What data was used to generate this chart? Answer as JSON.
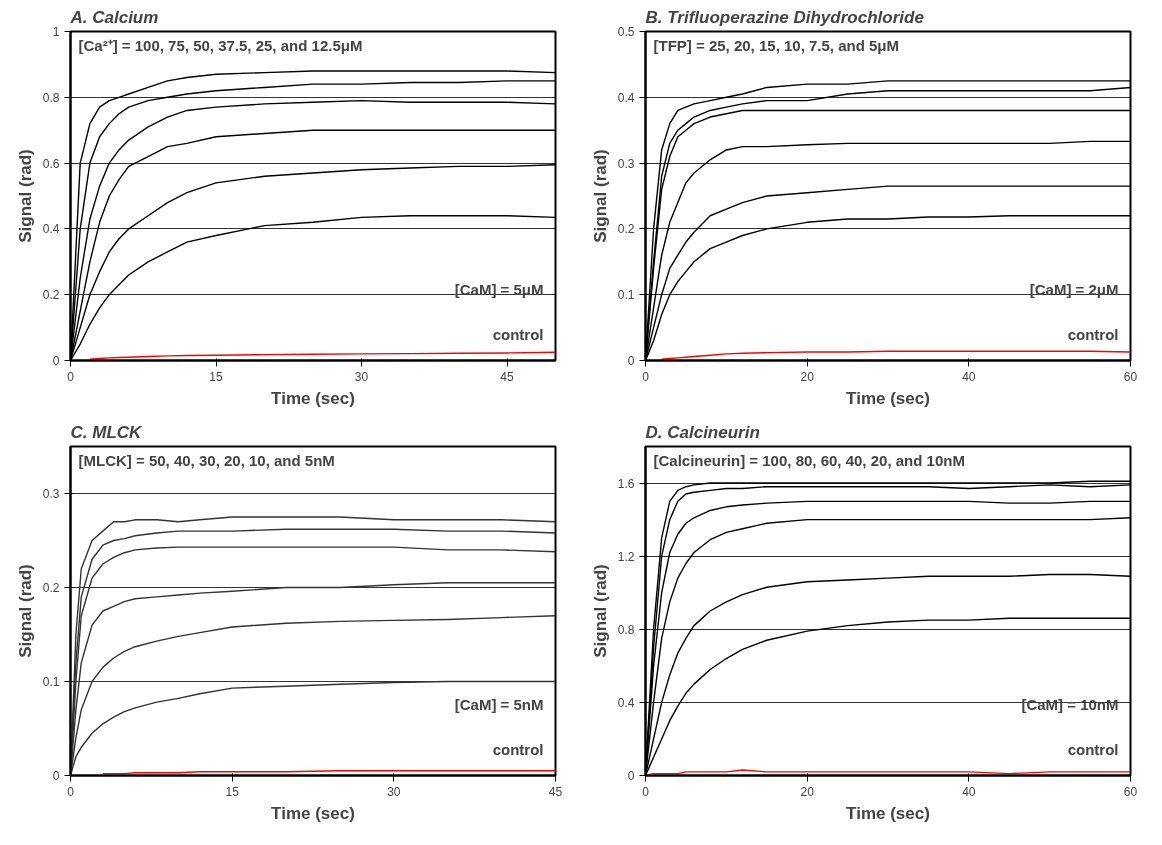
{
  "chart_data": [
    {
      "type": "line",
      "title": "A. Calcium",
      "xlabel": "Time (sec)",
      "ylabel": "Signal (rad)",
      "annotations": [
        "[Ca²⁺] = 100, 75, 50, 37.5, 25, and 12.5μM",
        "[CaM] = 5μM",
        "control"
      ],
      "xlim": [
        0,
        50
      ],
      "ylim": [
        0,
        1
      ],
      "xticks": [
        0,
        15,
        30,
        45
      ],
      "yticks": [
        0,
        0.2,
        0.4,
        0.6,
        0.8,
        1
      ],
      "grid": "y",
      "x": [
        0,
        1,
        2,
        3,
        4,
        5,
        6,
        8,
        10,
        12,
        15,
        20,
        25,
        30,
        35,
        40,
        45,
        50
      ],
      "series": [
        {
          "color": "#000000",
          "values": [
            0,
            0.6,
            0.72,
            0.77,
            0.79,
            0.8,
            0.81,
            0.83,
            0.85,
            0.86,
            0.87,
            0.875,
            0.88,
            0.88,
            0.88,
            0.88,
            0.88,
            0.875
          ]
        },
        {
          "color": "#000000",
          "values": [
            0,
            0.4,
            0.6,
            0.68,
            0.72,
            0.75,
            0.77,
            0.79,
            0.8,
            0.81,
            0.82,
            0.83,
            0.84,
            0.84,
            0.845,
            0.845,
            0.85,
            0.85
          ]
        },
        {
          "color": "#000000",
          "values": [
            0,
            0.25,
            0.43,
            0.53,
            0.6,
            0.64,
            0.67,
            0.71,
            0.74,
            0.76,
            0.77,
            0.78,
            0.785,
            0.79,
            0.785,
            0.785,
            0.785,
            0.78
          ]
        },
        {
          "color": "#000000",
          "values": [
            0,
            0.15,
            0.3,
            0.42,
            0.5,
            0.55,
            0.59,
            0.62,
            0.65,
            0.66,
            0.68,
            0.69,
            0.7,
            0.7,
            0.7,
            0.7,
            0.7,
            0.7
          ]
        },
        {
          "color": "#000000",
          "values": [
            0,
            0.1,
            0.2,
            0.27,
            0.33,
            0.37,
            0.4,
            0.44,
            0.48,
            0.51,
            0.54,
            0.56,
            0.57,
            0.58,
            0.585,
            0.59,
            0.59,
            0.595
          ]
        },
        {
          "color": "#000000",
          "values": [
            0,
            0.05,
            0.11,
            0.16,
            0.2,
            0.23,
            0.26,
            0.3,
            0.33,
            0.36,
            0.38,
            0.41,
            0.42,
            0.435,
            0.44,
            0.44,
            0.44,
            0.435
          ]
        },
        {
          "color": "#ff0000",
          "values": [
            null,
            null,
            0.004,
            0.006,
            0.008,
            0.009,
            0.01,
            0.012,
            0.014,
            0.015,
            0.016,
            0.018,
            0.019,
            0.02,
            0.021,
            0.022,
            0.023,
            0.025
          ]
        }
      ]
    },
    {
      "type": "line",
      "title": "B. Trifluoperazine Dihydrochloride",
      "xlabel": "Time (sec)",
      "ylabel": "Signal (rad)",
      "annotations": [
        "[TFP] = 25, 20, 15, 10, 7.5, and 5μM",
        "[CaM] = 2μM",
        "control"
      ],
      "xlim": [
        0,
        60
      ],
      "ylim": [
        0,
        0.5
      ],
      "xticks": [
        0,
        20,
        40,
        60
      ],
      "yticks": [
        0,
        0.1,
        0.2,
        0.3,
        0.4,
        0.5
      ],
      "grid": "y",
      "x": [
        0,
        1,
        2,
        3,
        4,
        5,
        6,
        8,
        10,
        12,
        15,
        20,
        25,
        30,
        35,
        40,
        45,
        50,
        55,
        60
      ],
      "series": [
        {
          "color": "#000000",
          "values": [
            0,
            0.2,
            0.32,
            0.36,
            0.38,
            0.385,
            0.39,
            0.395,
            0.4,
            0.405,
            0.415,
            0.42,
            0.42,
            0.425,
            0.425,
            0.425,
            0.425,
            0.425,
            0.425,
            0.425
          ]
        },
        {
          "color": "#000000",
          "values": [
            0,
            0.15,
            0.28,
            0.33,
            0.35,
            0.36,
            0.37,
            0.38,
            0.385,
            0.39,
            0.395,
            0.395,
            0.405,
            0.41,
            0.41,
            0.41,
            0.41,
            0.41,
            0.41,
            0.415
          ]
        },
        {
          "color": "#000000",
          "values": [
            0,
            0.14,
            0.26,
            0.31,
            0.34,
            0.35,
            0.36,
            0.37,
            0.375,
            0.38,
            0.38,
            0.38,
            0.38,
            0.38,
            0.38,
            0.38,
            0.38,
            0.38,
            0.38,
            0.38
          ]
        },
        {
          "color": "#000000",
          "values": [
            0,
            0.08,
            0.16,
            0.21,
            0.24,
            0.27,
            0.285,
            0.305,
            0.32,
            0.325,
            0.325,
            0.328,
            0.33,
            0.33,
            0.33,
            0.33,
            0.33,
            0.33,
            0.333,
            0.333
          ]
        },
        {
          "color": "#000000",
          "values": [
            0,
            0.05,
            0.1,
            0.14,
            0.16,
            0.18,
            0.195,
            0.22,
            0.23,
            0.24,
            0.25,
            0.255,
            0.26,
            0.265,
            0.265,
            0.265,
            0.265,
            0.265,
            0.265,
            0.265
          ]
        },
        {
          "color": "#000000",
          "values": [
            0,
            0.03,
            0.07,
            0.1,
            0.12,
            0.135,
            0.15,
            0.17,
            0.18,
            0.19,
            0.2,
            0.21,
            0.215,
            0.215,
            0.218,
            0.218,
            0.22,
            0.22,
            0.22,
            0.22
          ]
        },
        {
          "color": "#ff0000",
          "values": [
            null,
            null,
            0.002,
            0.003,
            0.004,
            0.005,
            0.006,
            0.008,
            0.01,
            0.011,
            0.012,
            0.013,
            0.013,
            0.014,
            0.014,
            0.014,
            0.014,
            0.014,
            0.014,
            0.013
          ]
        }
      ]
    },
    {
      "type": "line",
      "title": "C. MLCK",
      "xlabel": "Time (sec)",
      "ylabel": "Signal (rad)",
      "annotations": [
        "[MLCK] = 50, 40, 30, 20, 10, and 5nM",
        "[CaM] = 5nM",
        "control"
      ],
      "xlim": [
        0,
        45
      ],
      "ylim": [
        0,
        0.35
      ],
      "xticks": [
        0,
        15,
        30,
        45
      ],
      "yticks": [
        0,
        0.1,
        0.2,
        0.3
      ],
      "grid": "y",
      "x": [
        0,
        0.5,
        1,
        2,
        3,
        4,
        5,
        6,
        8,
        10,
        12,
        15,
        20,
        25,
        30,
        35,
        40,
        45
      ],
      "series": [
        {
          "color": "#333333",
          "values": [
            0,
            0.15,
            0.22,
            0.25,
            0.26,
            0.27,
            0.27,
            0.272,
            0.272,
            0.27,
            0.272,
            0.275,
            0.275,
            0.275,
            0.272,
            0.272,
            0.272,
            0.27
          ]
        },
        {
          "color": "#333333",
          "values": [
            0,
            0.12,
            0.19,
            0.23,
            0.245,
            0.25,
            0.252,
            0.255,
            0.258,
            0.26,
            0.26,
            0.26,
            0.262,
            0.262,
            0.262,
            0.26,
            0.26,
            0.258
          ]
        },
        {
          "color": "#333333",
          "values": [
            0,
            0.1,
            0.17,
            0.21,
            0.225,
            0.232,
            0.237,
            0.24,
            0.242,
            0.243,
            0.243,
            0.243,
            0.243,
            0.243,
            0.243,
            0.24,
            0.24,
            0.238
          ]
        },
        {
          "color": "#333333",
          "values": [
            0,
            0.07,
            0.12,
            0.16,
            0.175,
            0.18,
            0.185,
            0.188,
            0.19,
            0.192,
            0.194,
            0.196,
            0.2,
            0.2,
            0.203,
            0.205,
            0.205,
            0.205
          ]
        },
        {
          "color": "#333333",
          "values": [
            0,
            0.04,
            0.07,
            0.1,
            0.115,
            0.125,
            0.132,
            0.137,
            0.143,
            0.148,
            0.152,
            0.158,
            0.162,
            0.164,
            0.165,
            0.166,
            0.168,
            0.17
          ]
        },
        {
          "color": "#333333",
          "values": [
            0,
            0.02,
            0.03,
            0.045,
            0.055,
            0.062,
            0.068,
            0.072,
            0.078,
            0.082,
            0.087,
            0.093,
            0.095,
            0.097,
            0.099,
            0.1,
            0.1,
            0.1
          ]
        },
        {
          "color": "#ff0000",
          "values": [
            null,
            null,
            null,
            null,
            0.002,
            0.002,
            0.002,
            0.003,
            0.003,
            0.003,
            0.004,
            0.004,
            0.004,
            0.005,
            0.005,
            0.005,
            0.005,
            0.005
          ]
        }
      ]
    },
    {
      "type": "line",
      "title": "D. Calcineurin",
      "xlabel": "Time (sec)",
      "ylabel": "Signal (rad)",
      "annotations": [
        "[Calcineurin] = 100, 80, 60, 40, 20, and 10nM",
        "[CaM] = 10nM",
        "control"
      ],
      "xlim": [
        0,
        60
      ],
      "ylim": [
        0,
        1.8
      ],
      "xticks": [
        0,
        20,
        40,
        60
      ],
      "yticks": [
        0,
        0.4,
        0.8,
        1.2,
        1.6
      ],
      "grid": "y",
      "x": [
        0,
        1,
        2,
        3,
        4,
        5,
        6,
        8,
        10,
        12,
        15,
        20,
        25,
        30,
        35,
        40,
        45,
        50,
        55,
        60
      ],
      "series": [
        {
          "color": "#000000",
          "values": [
            0,
            0.8,
            1.3,
            1.5,
            1.56,
            1.58,
            1.59,
            1.6,
            1.6,
            1.6,
            1.6,
            1.6,
            1.6,
            1.6,
            1.6,
            1.6,
            1.6,
            1.6,
            1.61,
            1.61
          ]
        },
        {
          "color": "#000000",
          "values": [
            0,
            0.7,
            1.2,
            1.4,
            1.5,
            1.54,
            1.55,
            1.56,
            1.57,
            1.57,
            1.58,
            1.58,
            1.58,
            1.58,
            1.58,
            1.57,
            1.58,
            1.59,
            1.58,
            1.59
          ]
        },
        {
          "color": "#000000",
          "values": [
            0,
            0.6,
            1.0,
            1.22,
            1.32,
            1.38,
            1.41,
            1.45,
            1.47,
            1.48,
            1.49,
            1.5,
            1.5,
            1.5,
            1.5,
            1.5,
            1.49,
            1.49,
            1.5,
            1.5
          ]
        },
        {
          "color": "#000000",
          "values": [
            0,
            0.4,
            0.75,
            0.95,
            1.08,
            1.16,
            1.22,
            1.29,
            1.33,
            1.35,
            1.38,
            1.4,
            1.4,
            1.4,
            1.4,
            1.4,
            1.4,
            1.4,
            1.4,
            1.41
          ]
        },
        {
          "color": "#000000",
          "values": [
            0,
            0.2,
            0.4,
            0.55,
            0.67,
            0.75,
            0.82,
            0.9,
            0.95,
            0.99,
            1.03,
            1.06,
            1.07,
            1.08,
            1.09,
            1.09,
            1.09,
            1.1,
            1.1,
            1.09
          ]
        },
        {
          "color": "#000000",
          "values": [
            0,
            0.1,
            0.2,
            0.3,
            0.38,
            0.45,
            0.5,
            0.58,
            0.64,
            0.69,
            0.74,
            0.79,
            0.82,
            0.84,
            0.85,
            0.85,
            0.86,
            0.86,
            0.86,
            0.86
          ]
        },
        {
          "color": "#ff0000",
          "values": [
            0,
            0.01,
            0.01,
            0.01,
            0.01,
            0.02,
            0.02,
            0.02,
            0.02,
            0.03,
            0.02,
            0.02,
            0.02,
            0.02,
            0.02,
            0.02,
            0.01,
            0.02,
            0.02,
            0.02
          ]
        }
      ]
    }
  ]
}
